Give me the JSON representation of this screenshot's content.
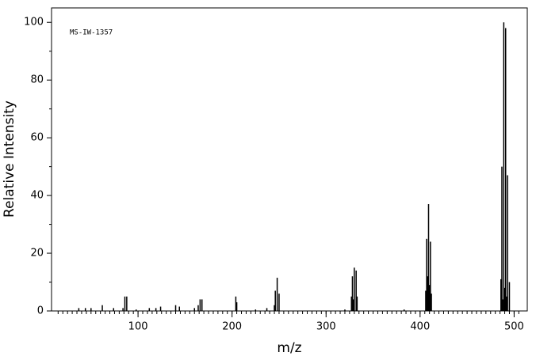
{
  "chart_data": {
    "type": "stem",
    "annotation": "MS-IW-1357",
    "xlabel": "m/z",
    "ylabel": "Relative Intensity",
    "x": [
      37,
      44,
      50,
      62,
      74,
      84,
      86,
      88,
      98,
      112,
      119,
      124,
      140,
      144,
      160,
      164,
      166,
      168,
      204,
      205,
      225,
      237,
      245,
      246,
      248,
      250,
      320,
      327,
      328,
      329,
      330,
      332,
      333,
      383,
      406,
      407,
      408,
      409,
      410,
      411,
      412,
      486,
      487,
      488,
      489,
      490,
      491,
      492,
      493,
      495
    ],
    "values": [
      1,
      1,
      1,
      2,
      1,
      1,
      5,
      5,
      0.5,
      1,
      1,
      1.5,
      2,
      1.5,
      1,
      2,
      4,
      4,
      5,
      3,
      0.5,
      1,
      2,
      7,
      11.5,
      6,
      0.5,
      5,
      12,
      4,
      15,
      14,
      5,
      0.5,
      7,
      25,
      12,
      37,
      9,
      24,
      6,
      11,
      50,
      4,
      100,
      8,
      98,
      5,
      47,
      10
    ],
    "color": "#000000",
    "xlim": [
      8,
      514
    ],
    "ylim": [
      0,
      105
    ],
    "xticks": [
      100,
      200,
      300,
      400,
      500
    ],
    "yticks": [
      0,
      20,
      40,
      60,
      80,
      100
    ]
  }
}
